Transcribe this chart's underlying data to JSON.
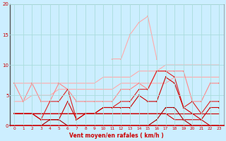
{
  "xlabel": "Vent moyen/en rafales ( km/h )",
  "bg_color": "#cceeff",
  "grid_color": "#aadddd",
  "x": [
    0,
    1,
    2,
    3,
    4,
    5,
    6,
    7,
    8,
    9,
    10,
    11,
    12,
    13,
    14,
    15,
    16,
    17,
    18,
    19,
    20,
    21,
    22,
    23
  ],
  "line_rafales_trend": {
    "y": [
      7,
      7,
      7,
      7,
      7,
      7,
      7,
      7,
      7,
      7,
      8,
      8,
      8,
      8,
      9,
      9,
      9,
      10,
      10,
      10,
      10,
      10,
      10,
      10
    ],
    "color": "#ffaaaa",
    "lw": 0.8
  },
  "line_moyen_trend": {
    "y": [
      2,
      2,
      2,
      2,
      2,
      2,
      2,
      2,
      2,
      2,
      2,
      2,
      2,
      2,
      2,
      2,
      2,
      2,
      2,
      2,
      2,
      2,
      2,
      2
    ],
    "color": "#cc0000",
    "lw": 0.8
  },
  "line_rafales_slow": {
    "y": [
      4,
      4,
      5,
      5,
      5,
      6,
      6,
      6,
      6,
      6,
      6,
      6,
      7,
      7,
      7,
      7,
      7,
      7,
      8,
      8,
      8,
      8,
      8,
      8
    ],
    "color": "#ffaaaa",
    "lw": 0.8
  },
  "line_peak": {
    "y": [
      null,
      null,
      null,
      null,
      null,
      null,
      null,
      null,
      null,
      null,
      null,
      11,
      11,
      15,
      17,
      18,
      11,
      null,
      null,
      null,
      null,
      null,
      null,
      null
    ],
    "color": "#ffaaaa",
    "lw": 0.8,
    "marker": "s",
    "ms": 2.0
  },
  "line_rafales": {
    "y": [
      7,
      4,
      7,
      4,
      4,
      7,
      6,
      4,
      4,
      4,
      4,
      4,
      6,
      6,
      7,
      6,
      9,
      9,
      9,
      9,
      4,
      4,
      7,
      7
    ],
    "color": "#ff8888",
    "lw": 0.8,
    "marker": "s",
    "ms": 2.0
  },
  "line_moyen": {
    "y": [
      2,
      2,
      2,
      1,
      4,
      4,
      6,
      1,
      2,
      2,
      3,
      3,
      4,
      4,
      6,
      6,
      9,
      9,
      8,
      3,
      4,
      2,
      4,
      4
    ],
    "color": "#dd2222",
    "lw": 0.8,
    "marker": "s",
    "ms": 2.0
  },
  "line_moyen2": {
    "y": [
      2,
      2,
      2,
      1,
      1,
      1,
      4,
      1,
      2,
      2,
      3,
      3,
      3,
      3,
      5,
      4,
      4,
      8,
      7,
      3,
      2,
      1,
      3,
      3
    ],
    "color": "#cc0000",
    "lw": 0.8,
    "marker": "s",
    "ms": 2.0
  },
  "line_min": {
    "y": [
      0,
      0,
      0,
      0,
      1,
      1,
      0,
      0,
      0,
      0,
      0,
      0,
      0,
      0,
      0,
      0,
      1,
      3,
      3,
      1,
      0,
      0,
      0,
      0
    ],
    "color": "#aa0000",
    "lw": 0.8,
    "marker": "s",
    "ms": 2.0
  },
  "line_decreasing": {
    "y": [
      2,
      2,
      2,
      2,
      2,
      2,
      2,
      2,
      2,
      2,
      2,
      2,
      2,
      2,
      2,
      2,
      2,
      2,
      1,
      1,
      1,
      1,
      0,
      0
    ],
    "color": "#cc0000",
    "lw": 0.8
  },
  "ylim": [
    0,
    20
  ],
  "yticks": [
    0,
    5,
    10,
    15,
    20
  ],
  "xticks": [
    0,
    1,
    2,
    3,
    4,
    5,
    6,
    7,
    8,
    9,
    10,
    11,
    12,
    13,
    14,
    15,
    16,
    17,
    18,
    19,
    20,
    21,
    22,
    23
  ]
}
